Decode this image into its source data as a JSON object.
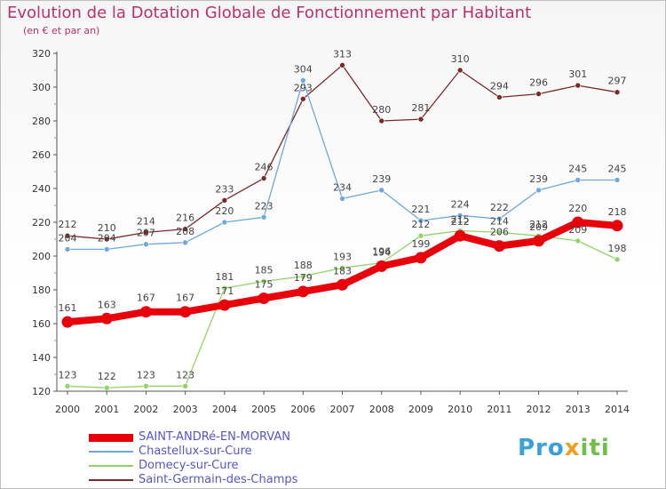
{
  "header": {
    "title": "Evolution de la Dotation Globale de Fonctionnement par Habitant",
    "subtitle": "(en € et par an)"
  },
  "logo": {
    "text": "Proxiti",
    "colors": [
      "#3aa0d8",
      "#f0a020",
      "#6cc04a"
    ]
  },
  "chart_data": {
    "type": "line",
    "title": "Evolution de la Dotation Globale de Fonctionnement par Habitant",
    "subtitle": "(en € et par an)",
    "xlabel": "",
    "ylabel": "",
    "x": [
      "2000",
      "2001",
      "2002",
      "2003",
      "2004",
      "2005",
      "2006",
      "2007",
      "2008",
      "2009",
      "2010",
      "2011",
      "2012",
      "2013",
      "2014"
    ],
    "ylim": [
      120,
      320
    ],
    "yticks": [
      120,
      140,
      160,
      180,
      200,
      220,
      240,
      260,
      280,
      300,
      320
    ],
    "grid": false,
    "legend_position": "bottom-left",
    "series": [
      {
        "name": "SAINT-ANDRé-EN-MORVAN",
        "color": "#e8000b",
        "emphasized": true,
        "values": [
          161,
          163,
          167,
          167,
          171,
          175,
          179,
          183,
          194,
          199,
          212,
          206,
          209,
          220,
          218
        ],
        "labels": [
          "161",
          "163",
          "167",
          "167",
          "171",
          "175",
          "179",
          "183",
          "194",
          "199",
          "212",
          "206",
          "209",
          "220",
          "218"
        ]
      },
      {
        "name": "Chastellux-sur-Cure",
        "color": "#6fa8dc",
        "emphasized": false,
        "values": [
          204,
          204,
          207,
          208,
          220,
          223,
          304,
          234,
          239,
          221,
          224,
          222,
          239,
          245,
          245
        ],
        "labels": [
          "204",
          "204",
          "207",
          "208",
          "220",
          "223",
          "304",
          "234",
          "239",
          "221",
          "224",
          "222",
          "239",
          "245",
          "245"
        ]
      },
      {
        "name": "Domecy-sur-Cure",
        "color": "#93d468",
        "emphasized": false,
        "values": [
          123,
          122,
          123,
          123,
          181,
          185,
          188,
          193,
          196,
          212,
          215,
          214,
          212,
          209,
          198
        ],
        "labels": [
          "123",
          "122",
          "123",
          "123",
          "181",
          "185",
          "188",
          "193",
          "196",
          "212",
          "215",
          "214",
          "212",
          "209",
          "198"
        ]
      },
      {
        "name": "Saint-Germain-des-Champs",
        "color": "#7b2a2a",
        "emphasized": false,
        "values": [
          212,
          210,
          214,
          216,
          233,
          246,
          293,
          313,
          280,
          281,
          310,
          294,
          296,
          301,
          297
        ],
        "labels": [
          "212",
          "210",
          "214",
          "216",
          "233",
          "246",
          "293",
          "313",
          "280",
          "281",
          "310",
          "294",
          "296",
          "301",
          "297"
        ]
      }
    ]
  }
}
